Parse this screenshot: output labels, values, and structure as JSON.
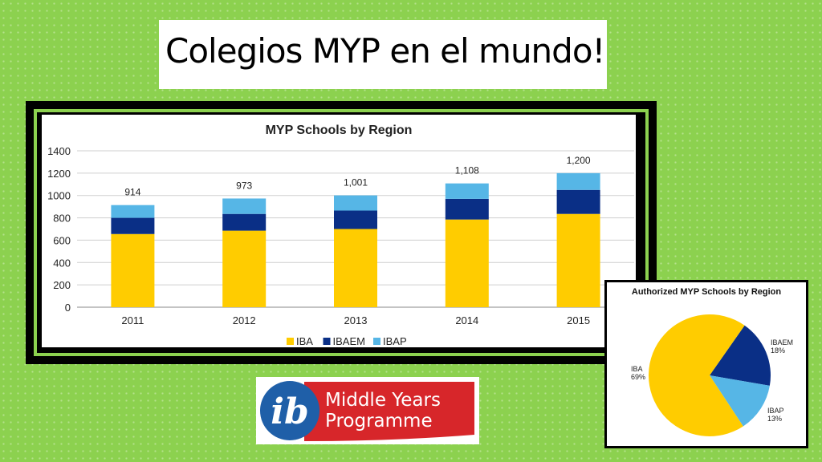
{
  "slide": {
    "title": "Colegios MYP en el mundo!"
  },
  "logo": {
    "mark": "ib",
    "line1": "Middle Years",
    "line2": "Programme",
    "colors": {
      "red": "#d7262a",
      "blue": "#1f5fa8",
      "white": "#ffffff"
    }
  },
  "colors": {
    "background": "#8cd14f",
    "IBA": "#ffcc00",
    "IBAEM": "#0a2f86",
    "IBAP": "#56b6e6"
  },
  "chart_data": [
    {
      "type": "bar",
      "stacked": true,
      "title": "MYP Schools by Region",
      "categories": [
        "2011",
        "2012",
        "2013",
        "2014",
        "2015"
      ],
      "series": [
        {
          "name": "IBA",
          "values": [
            655,
            685,
            700,
            785,
            835
          ]
        },
        {
          "name": "IBAEM",
          "values": [
            145,
            150,
            165,
            185,
            215
          ]
        },
        {
          "name": "IBAP",
          "values": [
            114,
            138,
            136,
            138,
            150
          ]
        }
      ],
      "totals": [
        "914",
        "973",
        "1,001",
        "1,108",
        "1,200"
      ],
      "ylim": [
        0,
        1400
      ],
      "yticks": [
        "0",
        "200",
        "400",
        "600",
        "800",
        "1000",
        "1200",
        "1400"
      ],
      "grid": true,
      "legend": "bottom"
    },
    {
      "type": "pie",
      "title": "Authorized MYP Schools by Region",
      "slices": [
        {
          "name": "IBA",
          "value": 69,
          "label": "69%"
        },
        {
          "name": "IBAEM",
          "value": 18,
          "label": "18%"
        },
        {
          "name": "IBAP",
          "value": 13,
          "label": "13%"
        }
      ]
    }
  ]
}
